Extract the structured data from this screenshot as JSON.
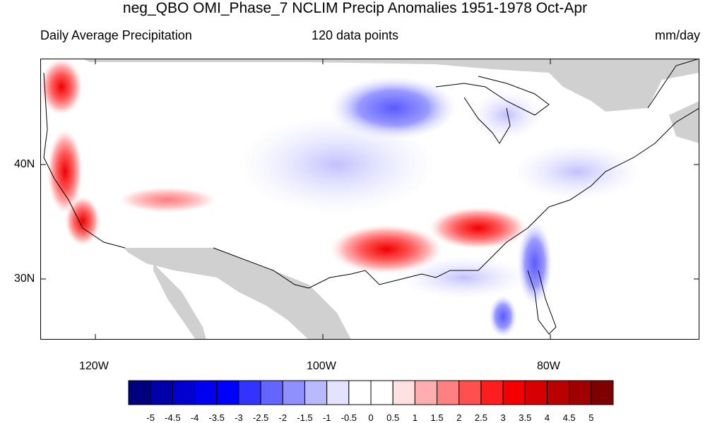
{
  "title": "neg_QBO OMI_Phase_7 NCLIM Precip Anomalies 1951-1978 Oct-Apr",
  "subtitle_left": "Daily Average Precipitation",
  "subtitle_center": "120 data points",
  "subtitle_right": "mm/day",
  "axes": {
    "lat_labels": [
      "40N",
      "30N"
    ],
    "lon_labels": [
      "120W",
      "100W",
      "80W"
    ]
  },
  "colorbar": {
    "colors": [
      "#00007f",
      "#0000a8",
      "#0000cf",
      "#0000f0",
      "#0000ff",
      "#3333ff",
      "#6464ff",
      "#8f8fff",
      "#b9b9ff",
      "#e3e3ff",
      "#ffffff",
      "#ffffff",
      "#ffe1e1",
      "#ffaeae",
      "#ff8080",
      "#ff4f4f",
      "#ff1d1d",
      "#f50000",
      "#d60000",
      "#bb0000",
      "#a00000",
      "#7f0000"
    ],
    "labels": [
      "-5",
      "-4.5",
      "-4",
      "-3.5",
      "-3",
      "-2.5",
      "-2",
      "-1.5",
      "-1",
      "-0.5",
      "0",
      "0.5",
      "1",
      "1.5",
      "2",
      "2.5",
      "3",
      "3.5",
      "4",
      "4.5",
      "5"
    ]
  },
  "colors": {
    "land_masked": "#d0d0d0",
    "positive": "#ff5555",
    "negative": "#8f8fff"
  }
}
